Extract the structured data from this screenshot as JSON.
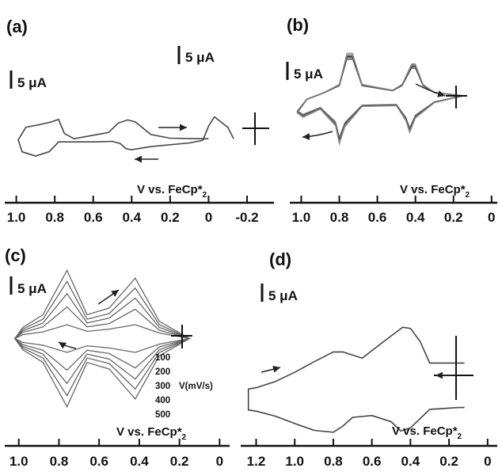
{
  "chart_data": [
    {
      "panel_label": "(a)",
      "type": "line",
      "scale_labels": [
        "5 μA",
        "5 μA"
      ],
      "xlabel_main": "V vs. FeCp*",
      "xlabel_sub": "2",
      "x_ticks": [
        "1.0",
        "0.8",
        "0.6",
        "0.4",
        "0.2",
        "0",
        "-0.2"
      ],
      "xlim": [
        1.06,
        -0.34
      ],
      "series": [
        {
          "x": [
            0.0,
            0.03,
            0.2,
            0.3,
            0.38,
            0.42,
            0.47,
            0.52,
            0.7,
            0.75,
            0.78,
            0.82,
            0.88,
            0.95,
            0.99,
            0.97,
            0.9,
            0.83,
            0.8,
            0.78,
            0.6,
            0.5,
            0.46,
            0.43,
            0.4,
            0.3,
            0.1,
            0.03,
            0.0,
            -0.03,
            -0.1,
            -0.13
          ],
          "y": [
            -2.0,
            -2.0,
            -1.9,
            -1.2,
            1.2,
            1.6,
            1.0,
            -0.8,
            -2.0,
            -1.0,
            1.7,
            1.2,
            0.7,
            0.2,
            -2.2,
            -4.5,
            -5.3,
            -4.5,
            -3.4,
            -2.6,
            -2.6,
            -2.5,
            -2.9,
            -3.9,
            -4.1,
            -3.5,
            -2.8,
            -2.3,
            0.4,
            2.2,
            0.2,
            -2.0
          ]
        }
      ]
    },
    {
      "panel_label": "(b)",
      "type": "line",
      "scale_labels": [
        "5 μA"
      ],
      "xlabel_main": "V vs. FeCp*",
      "xlabel_sub": "2",
      "x_ticks": [
        "1.0",
        "0.8",
        "0.6",
        "0.4",
        "0.2",
        "0"
      ],
      "xlim": [
        1.06,
        -0.03
      ],
      "series": [
        {
          "x": [
            0.15,
            0.3,
            0.36,
            0.4,
            0.42,
            0.47,
            0.52,
            0.68,
            0.73,
            0.76,
            0.8,
            0.88,
            0.97,
            1.02,
            0.99,
            0.9,
            0.82,
            0.8,
            0.77,
            0.68,
            0.5,
            0.45,
            0.43,
            0.4,
            0.3,
            0.15
          ],
          "y": [
            0.0,
            0.9,
            3.0,
            8.3,
            8.3,
            3.0,
            1.5,
            3.0,
            11.0,
            11.0,
            3.0,
            0.9,
            -1.0,
            -4.5,
            -5.6,
            -3.5,
            -7.8,
            -12.5,
            -8.0,
            -2.8,
            -2.6,
            -6.5,
            -9.6,
            -5.8,
            -1.8,
            0.0
          ]
        }
      ]
    },
    {
      "panel_label": "(c)",
      "type": "line",
      "scale_labels": [
        "5 μA"
      ],
      "xlabel_main": "V vs. FeCp*",
      "xlabel_sub": "2",
      "x_ticks": [
        "1.0",
        "0.8",
        "0.6",
        "0.4",
        "0.2",
        "0"
      ],
      "xlim": [
        1.07,
        -0.05
      ],
      "legend_title": "V(mV/s)",
      "series": [
        {
          "name": "100",
          "x": [
            0.15,
            0.3,
            0.42,
            0.55,
            0.66,
            0.76,
            0.88,
            0.98,
            1.02
          ],
          "y": [
            -0.5,
            0.5,
            2.0,
            1.2,
            0.8,
            2.0,
            0.7,
            0.2,
            -0.5
          ]
        },
        {
          "name": "200",
          "x": [
            0.15,
            0.3,
            0.42,
            0.55,
            0.66,
            0.76,
            0.88,
            0.98,
            1.02
          ],
          "y": [
            -0.5,
            1.0,
            4.8,
            2.2,
            1.6,
            5.2,
            1.6,
            0.6,
            -0.5
          ]
        },
        {
          "name": "300",
          "x": [
            0.15,
            0.3,
            0.42,
            0.55,
            0.66,
            0.76,
            0.88,
            0.98,
            1.02
          ],
          "y": [
            -0.5,
            1.5,
            6.8,
            3.2,
            2.3,
            7.6,
            2.3,
            0.9,
            -0.5
          ]
        },
        {
          "name": "400",
          "x": [
            0.15,
            0.3,
            0.42,
            0.55,
            0.66,
            0.76,
            0.88,
            0.98,
            1.02
          ],
          "y": [
            -0.5,
            2.0,
            8.6,
            4.0,
            3.0,
            9.8,
            3.0,
            1.2,
            -0.5
          ]
        },
        {
          "name": "500",
          "x": [
            0.15,
            0.3,
            0.42,
            0.55,
            0.66,
            0.76,
            0.88,
            0.98,
            1.02
          ],
          "y": [
            -0.5,
            2.6,
            10.4,
            5.0,
            3.8,
            11.8,
            3.8,
            1.5,
            -0.5
          ]
        }
      ]
    },
    {
      "panel_label": "(d)",
      "type": "line",
      "scale_labels": [
        "5 μA"
      ],
      "xlabel_main": "V vs. FeCp*",
      "xlabel_sub": "2",
      "x_ticks": [
        "1.2",
        "1.0",
        "0.8",
        "0.6",
        "0.4",
        "0.2",
        "0"
      ],
      "xlim": [
        1.28,
        -0.05
      ],
      "series": [
        {
          "x": [
            0.12,
            0.3,
            0.35,
            0.4,
            0.44,
            0.55,
            0.65,
            0.75,
            0.8,
            0.9,
            1.0,
            1.1,
            1.2,
            1.24,
            1.24,
            1.2,
            1.1,
            1.0,
            0.9,
            0.8,
            0.75,
            0.7,
            0.6,
            0.5,
            0.45,
            0.4,
            0.3,
            0.15,
            0.12
          ],
          "y": [
            2.0,
            2.0,
            5.5,
            7.6,
            7.8,
            5.2,
            2.8,
            3.8,
            3.8,
            2.2,
            0.5,
            -1.0,
            -2.0,
            -2.2,
            -5.6,
            -5.8,
            -6.6,
            -7.8,
            -8.9,
            -9.2,
            -8.2,
            -6.8,
            -6.5,
            -7.5,
            -9.0,
            -8.5,
            -5.5,
            -5.2,
            -5.2
          ]
        }
      ]
    }
  ]
}
